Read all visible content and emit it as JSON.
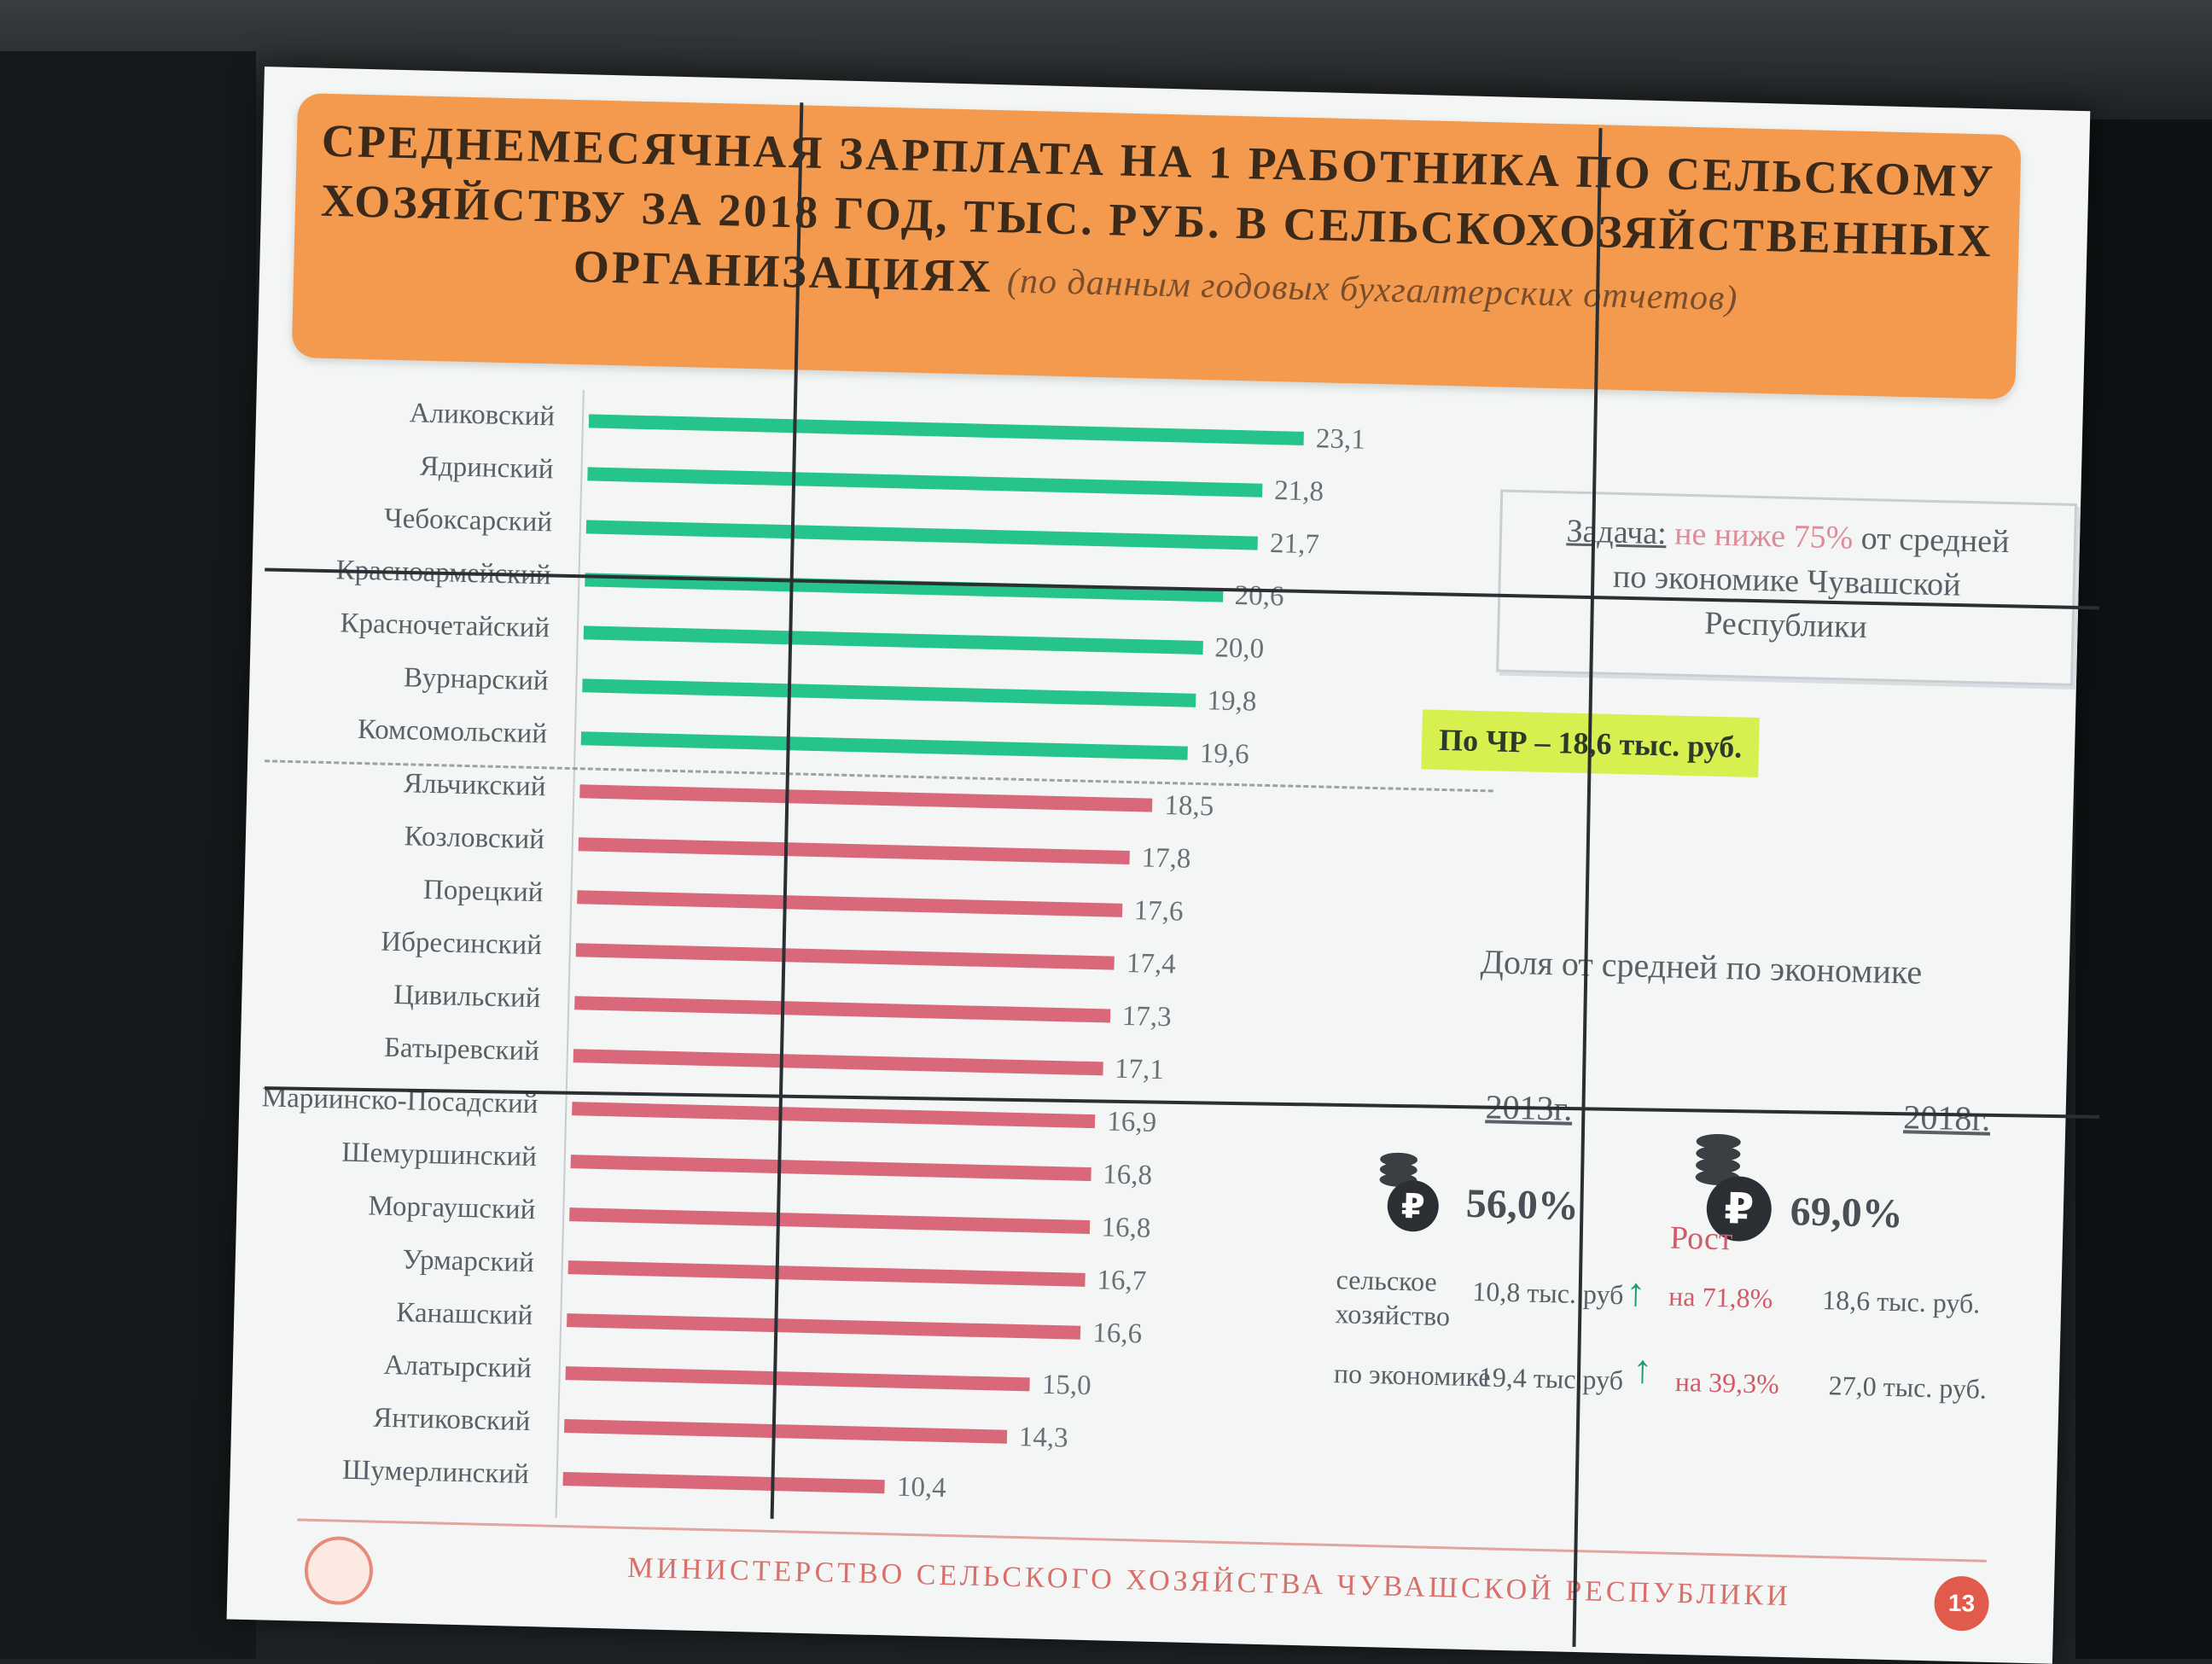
{
  "slide": {
    "title_lines": [
      "СРЕДНЕМЕСЯЧНАЯ ЗАРПЛАТА НА 1 РАБОТНИКА ПО СЕЛЬСКОМУ",
      "ХОЗЯЙСТВУ ЗА 2018 ГОД, ТЫС. РУБ. В СЕЛЬСКОХОЗЯЙСТВЕННЫХ",
      "ОРГАНИЗАЦИЯХ"
    ],
    "title_note": "(по данным годовых бухгалтерских отчетов)",
    "task": {
      "label": "Задача:",
      "highlight": "не ниже 75%",
      "text1": "от средней",
      "text2": "по экономике Чувашской",
      "text3": "Республики"
    },
    "chr_avg_label": "По ЧР – 18,6 тыс. руб.",
    "share": {
      "title": "Доля от средней по экономике",
      "year1": "2013г.",
      "year2": "2018г.",
      "pct1": "56,0%",
      "pct2": "69,0%",
      "growth_title": "Рост",
      "row1_label_a": "сельское",
      "row1_label_b": "хозяйство",
      "row1_v1": "10,8 тыс. руб",
      "row1_growth": "на 71,8%",
      "row1_v2": "18,6 тыс. руб.",
      "row2_label": "по экономике",
      "row2_v1": "19,4 тыс.руб",
      "row2_growth": "на 39,3%",
      "row2_v2": "27,0 тыс. руб."
    },
    "footer": "МИНИСТЕРСТВО СЕЛЬСКОГО ХОЗЯЙСТВА ЧУВАШСКОЙ РЕСПУБЛИКИ",
    "page_number": "13"
  },
  "colors": {
    "above_avg": "#26c48a",
    "below_avg": "#d9697a",
    "title_bg": "#f39a4e",
    "highlight_bg": "#d8f04f"
  },
  "chart_data": {
    "type": "bar",
    "orientation": "horizontal",
    "categories": [
      "Аликовский",
      "Ядринский",
      "Чебоксарский",
      "Красноармейский",
      "Красночетайский",
      "Вурнарский",
      "Комсомольский",
      "Яльчикский",
      "Козловский",
      "Порецкий",
      "Ибресинский",
      "Цивильский",
      "Батыревский",
      "Мариинско-Посадский",
      "Шемуршинский",
      "Моргаушский",
      "Урмарский",
      "Канашский",
      "Алатырский",
      "Янтиковский",
      "Шумерлинский"
    ],
    "values": [
      23.1,
      21.8,
      21.7,
      20.6,
      20.0,
      19.8,
      19.6,
      18.5,
      17.8,
      17.6,
      17.4,
      17.3,
      17.1,
      16.9,
      16.8,
      16.8,
      16.7,
      16.6,
      15.0,
      14.3,
      10.4
    ],
    "value_labels": [
      "23,1",
      "21,8",
      "21,7",
      "20,6",
      "20,0",
      "19,8",
      "19,6",
      "18,5",
      "17,8",
      "17,6",
      "17,4",
      "17,3",
      "17,1",
      "16,9",
      "16,8",
      "16,8",
      "16,7",
      "16,6",
      "15,0",
      "14,3",
      "10,4"
    ],
    "reference_line": 18.6,
    "xlim": [
      0,
      25
    ],
    "grid": false,
    "legend": "none"
  }
}
